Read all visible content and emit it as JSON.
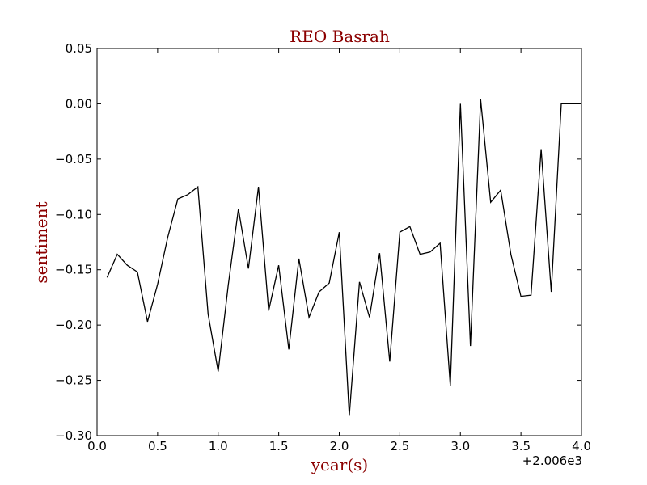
{
  "chart_data": {
    "type": "line",
    "title": "REO Basrah",
    "xlabel": "year(s)",
    "ylabel": "sentiment",
    "x_offset_label": "+2.006e3",
    "xlim": [
      0.0,
      4.0
    ],
    "ylim": [
      -0.3,
      0.05
    ],
    "grid": false,
    "x_ticks": [
      0.0,
      0.5,
      1.0,
      1.5,
      2.0,
      2.5,
      3.0,
      3.5,
      4.0
    ],
    "x_tick_labels": [
      "0.0",
      "0.5",
      "1.0",
      "1.5",
      "2.0",
      "2.5",
      "3.0",
      "3.5",
      "4.0"
    ],
    "y_ticks": [
      0.05,
      0.0,
      -0.05,
      -0.1,
      -0.15,
      -0.2,
      -0.25,
      -0.3
    ],
    "y_tick_labels": [
      "0.05",
      "0.00",
      "−0.05",
      "−0.10",
      "−0.15",
      "−0.20",
      "−0.25",
      "−0.30"
    ],
    "colors": {
      "line": "#000000",
      "title": "#8b0000",
      "axis_label": "#8b0000"
    },
    "series": [
      {
        "x": [
          0.083,
          0.167,
          0.25,
          0.333,
          0.417,
          0.5,
          0.583,
          0.667,
          0.75,
          0.833,
          0.917,
          1.0,
          1.083,
          1.167,
          1.25,
          1.333,
          1.417,
          1.5,
          1.583,
          1.667,
          1.75,
          1.833,
          1.917,
          2.0,
          2.083,
          2.167,
          2.25,
          2.333,
          2.417,
          2.5,
          2.583,
          2.667,
          2.75,
          2.833,
          2.917,
          3.0,
          3.083,
          3.167,
          3.25,
          3.333,
          3.417,
          3.5,
          3.583,
          3.667,
          3.75,
          3.833,
          3.917,
          4.0
        ],
        "y": [
          -0.157,
          -0.136,
          -0.146,
          -0.152,
          -0.197,
          -0.163,
          -0.121,
          -0.086,
          -0.082,
          -0.075,
          -0.19,
          -0.242,
          -0.164,
          -0.095,
          -0.149,
          -0.075,
          -0.187,
          -0.146,
          -0.222,
          -0.14,
          -0.193,
          -0.17,
          -0.162,
          -0.116,
          -0.282,
          -0.161,
          -0.193,
          -0.135,
          -0.233,
          -0.116,
          -0.111,
          -0.136,
          -0.134,
          -0.126,
          -0.255,
          0.0,
          -0.219,
          0.004,
          -0.089,
          -0.078,
          -0.136,
          -0.174,
          -0.173,
          -0.041,
          -0.17,
          0.0,
          0.0,
          0.0
        ]
      }
    ]
  }
}
